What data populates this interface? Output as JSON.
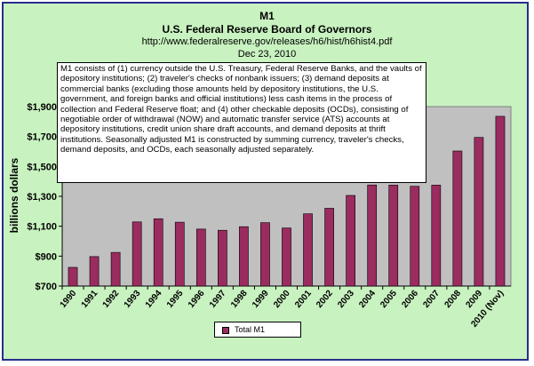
{
  "header": {
    "title": "M1",
    "subtitle": "U.S. Federal Reserve Board of Governors",
    "source_url": "http://www.federalreserve.gov/releases/h6/hist/h6hist4.pdf",
    "date": "Dec 23, 2010"
  },
  "note": "M1 consists of (1) currency outside the U.S. Treasury, Federal Reserve Banks, and the vaults of depository institutions; (2) traveler's checks of nonbank issuers; (3) demand deposits at commercial banks (excluding those amounts held by depository institutions, the U.S. government, and foreign banks and official institutions) less cash items in the process of collection and Federal Reserve float; and (4) other checkable deposits (OCDs), consisting of negotiable order of withdrawal (NOW) and automatic transfer service (ATS) accounts at depository institutions, credit union share draft accounts, and demand deposits at thrift institutions. Seasonally adjusted M1 is constructed by summing currency, traveler's checks, demand deposits, and OCDs, each seasonally adjusted separately.",
  "colors": {
    "bar": "#9b2c5f",
    "plot_bg": "#c0c0c0",
    "frame_bg": "#c8f2c0",
    "border": "#2a2f8a"
  },
  "chart_data": {
    "type": "bar",
    "title": "M1",
    "ylabel": "billions dollars",
    "xlabel": "",
    "ylim": [
      700,
      1900
    ],
    "yticks": [
      700,
      900,
      1100,
      1300,
      1500,
      1700,
      1900
    ],
    "ytick_labels": [
      "$700",
      "$900",
      "$1,100",
      "$1,300",
      "$1,500",
      "$1,700",
      "$1,900"
    ],
    "categories": [
      "1990",
      "1991",
      "1992",
      "1993",
      "1994",
      "1995",
      "1996",
      "1997",
      "1998",
      "1999",
      "2000",
      "2001",
      "2002",
      "2003",
      "2004",
      "2005",
      "2006",
      "2007",
      "2008",
      "2009",
      "2010 (Nov)"
    ],
    "series": [
      {
        "name": "Total M1",
        "values": [
          825,
          897,
          925,
          1129,
          1150,
          1127,
          1081,
          1073,
          1097,
          1124,
          1088,
          1183,
          1220,
          1306,
          1376,
          1375,
          1367,
          1375,
          1603,
          1694,
          1835
        ]
      }
    ],
    "legend": "bottom-center",
    "grid": false
  }
}
